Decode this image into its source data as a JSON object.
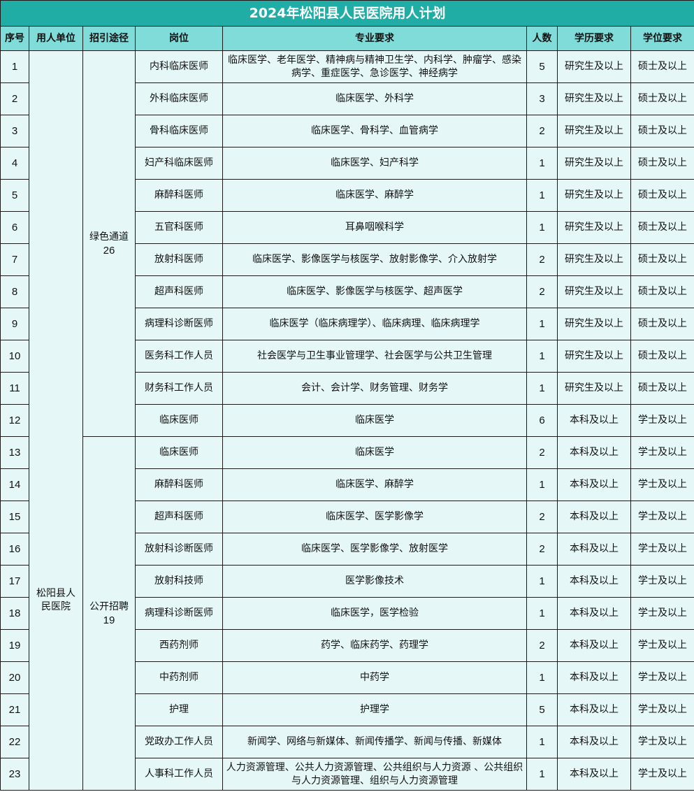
{
  "title": "2024年松阳县人民医院用人计划",
  "headers": [
    "序号",
    "用人单位",
    "招引途径",
    "岗位",
    "专业要求",
    "人数",
    "学历要求",
    "学位要求"
  ],
  "unit": "松阳县人民医院",
  "channels": [
    {
      "label": "绿色通道",
      "count": "26"
    },
    {
      "label": "公开招聘",
      "count": "19"
    }
  ],
  "colors": {
    "title_bg": "#20ada6",
    "header_bg": "#7fdcd9",
    "cell_bg": "#e6f7f7"
  },
  "rows": [
    {
      "no": "1",
      "post": "内科临床医师",
      "major": "临床医学、老年医学、精神病与精神卫生学、内科学、肿瘤学、感染病学、重症医学、急诊医学、神经病学",
      "count": "5",
      "edu": "研究生及以上",
      "degree": "硕士及以上"
    },
    {
      "no": "2",
      "post": "外科临床医师",
      "major": "临床医学、外科学",
      "count": "3",
      "edu": "研究生及以上",
      "degree": "硕士及以上"
    },
    {
      "no": "3",
      "post": "骨科临床医师",
      "major": "临床医学、骨科学、血管病学",
      "count": "2",
      "edu": "研究生及以上",
      "degree": "硕士及以上"
    },
    {
      "no": "4",
      "post": "妇产科临床医师",
      "major": "临床医学、妇产科学",
      "count": "1",
      "edu": "研究生及以上",
      "degree": "硕士及以上"
    },
    {
      "no": "5",
      "post": "麻醉科医师",
      "major": "临床医学、麻醉学",
      "count": "1",
      "edu": "研究生及以上",
      "degree": "硕士及以上"
    },
    {
      "no": "6",
      "post": "五官科医师",
      "major": "耳鼻咽喉科学",
      "count": "1",
      "edu": "研究生及以上",
      "degree": "硕士及以上"
    },
    {
      "no": "7",
      "post": "放射科医师",
      "major": "临床医学、影像医学与核医学、放射影像学、介入放射学",
      "count": "2",
      "edu": "研究生及以上",
      "degree": "硕士及以上"
    },
    {
      "no": "8",
      "post": "超声科医师",
      "major": "临床医学、影像医学与核医学、超声医学",
      "count": "2",
      "edu": "研究生及以上",
      "degree": "硕士及以上"
    },
    {
      "no": "9",
      "post": "病理科诊断医师",
      "major": "临床医学（临床病理学）、临床病理、临床病理学",
      "count": "1",
      "edu": "研究生及以上",
      "degree": "硕士及以上"
    },
    {
      "no": "10",
      "post": "医务科工作人员",
      "major": "社会医学与卫生事业管理学、社会医学与公共卫生管理",
      "count": "1",
      "edu": "研究生及以上",
      "degree": "硕士及以上"
    },
    {
      "no": "11",
      "post": "财务科工作人员",
      "major": "会计、会计学、财务管理、财务学",
      "count": "1",
      "edu": "研究生及以上",
      "degree": "硕士及以上"
    },
    {
      "no": "12",
      "post": "临床医师",
      "major": "临床医学",
      "count": "6",
      "edu": "本科及以上",
      "degree": "学士及以上"
    },
    {
      "no": "13",
      "post": "临床医师",
      "major": "临床医学",
      "count": "2",
      "edu": "本科及以上",
      "degree": "学士及以上"
    },
    {
      "no": "14",
      "post": "麻醉科医师",
      "major": "临床医学、麻醉学",
      "count": "1",
      "edu": "本科及以上",
      "degree": "学士及以上"
    },
    {
      "no": "15",
      "post": "超声科医师",
      "major": "临床医学、医学影像学",
      "count": "2",
      "edu": "本科及以上",
      "degree": "学士及以上"
    },
    {
      "no": "16",
      "post": "放射科诊断医师",
      "major": "临床医学、医学影像学、放射医学",
      "count": "2",
      "edu": "本科及以上",
      "degree": "学士及以上"
    },
    {
      "no": "17",
      "post": "放射科技师",
      "major": "医学影像技术",
      "count": "1",
      "edu": "本科及以上",
      "degree": "学士及以上"
    },
    {
      "no": "18",
      "post": "病理科诊断医师",
      "major": "临床医学，医学检验",
      "count": "1",
      "edu": "本科及以上",
      "degree": "学士及以上"
    },
    {
      "no": "19",
      "post": "西药剂师",
      "major": "药学、临床药学、药理学",
      "count": "2",
      "edu": "本科及以上",
      "degree": "学士及以上"
    },
    {
      "no": "20",
      "post": "中药剂师",
      "major": "中药学",
      "count": "1",
      "edu": "本科及以上",
      "degree": "学士及以上"
    },
    {
      "no": "21",
      "post": "护理",
      "major": "护理学",
      "count": "5",
      "edu": "本科及以上",
      "degree": "学士及以上"
    },
    {
      "no": "22",
      "post": "党政办工作人员",
      "major": "新闻学、网络与新媒体、新闻传播学、新闻与传播、新媒体",
      "count": "1",
      "edu": "本科及以上",
      "degree": "学士及以上"
    },
    {
      "no": "23",
      "post": "人事科工作人员",
      "major": "人力资源管理、公共人力资源管理、公共组织与人力资源 、公共组织与人力资源管理、组织与人力资源管理",
      "count": "1",
      "edu": "本科及以上",
      "degree": "学士及以上"
    }
  ]
}
